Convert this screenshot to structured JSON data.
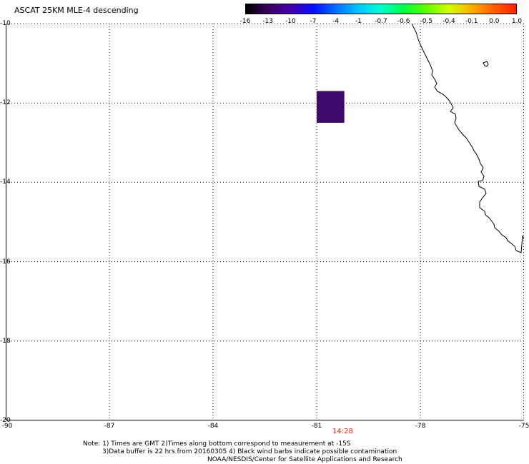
{
  "title": "ASCAT 25KM MLE-4 descending",
  "colorbar": {
    "labels": [
      "-16",
      "-13",
      "-10",
      "-7",
      "-4",
      "-1",
      "-0.7",
      "-0.6",
      "-0.5",
      "-0.4",
      "-0.1",
      "0.0",
      "1.0"
    ],
    "colors": [
      "#000000",
      "#3a0060",
      "#4400aa",
      "#0010ff",
      "#0070ff",
      "#00c8ff",
      "#00ffd0",
      "#00ff40",
      "#60ff00",
      "#d0ff00",
      "#ffb000",
      "#ff6000",
      "#ff2000"
    ]
  },
  "map": {
    "lat_range": [
      -20,
      -10
    ],
    "lon_range": [
      -90,
      -75
    ],
    "lat_ticks": [
      "-10",
      "-12",
      "-14",
      "-16",
      "-18",
      "-20"
    ],
    "lon_ticks": [
      "-90",
      "-87",
      "-84",
      "-81",
      "-78",
      "-75"
    ],
    "grid": "dotted",
    "data_cell": {
      "lon_min": -81,
      "lon_max": -80.2,
      "lat_min": -12.5,
      "lat_max": -11.7,
      "color": "#3e0a6e"
    },
    "time_label": "14:28"
  },
  "notes": {
    "line1": "Note: 1) Times are GMT 2)Times along bottom correspond to measurement at -15S",
    "line2": "3)Data buffer is 22 hrs from 20160305 4) Black wind barbs indicate possible contamination",
    "line3": "NOAA/NESDIS/Center for Satellite Applications and Research"
  }
}
